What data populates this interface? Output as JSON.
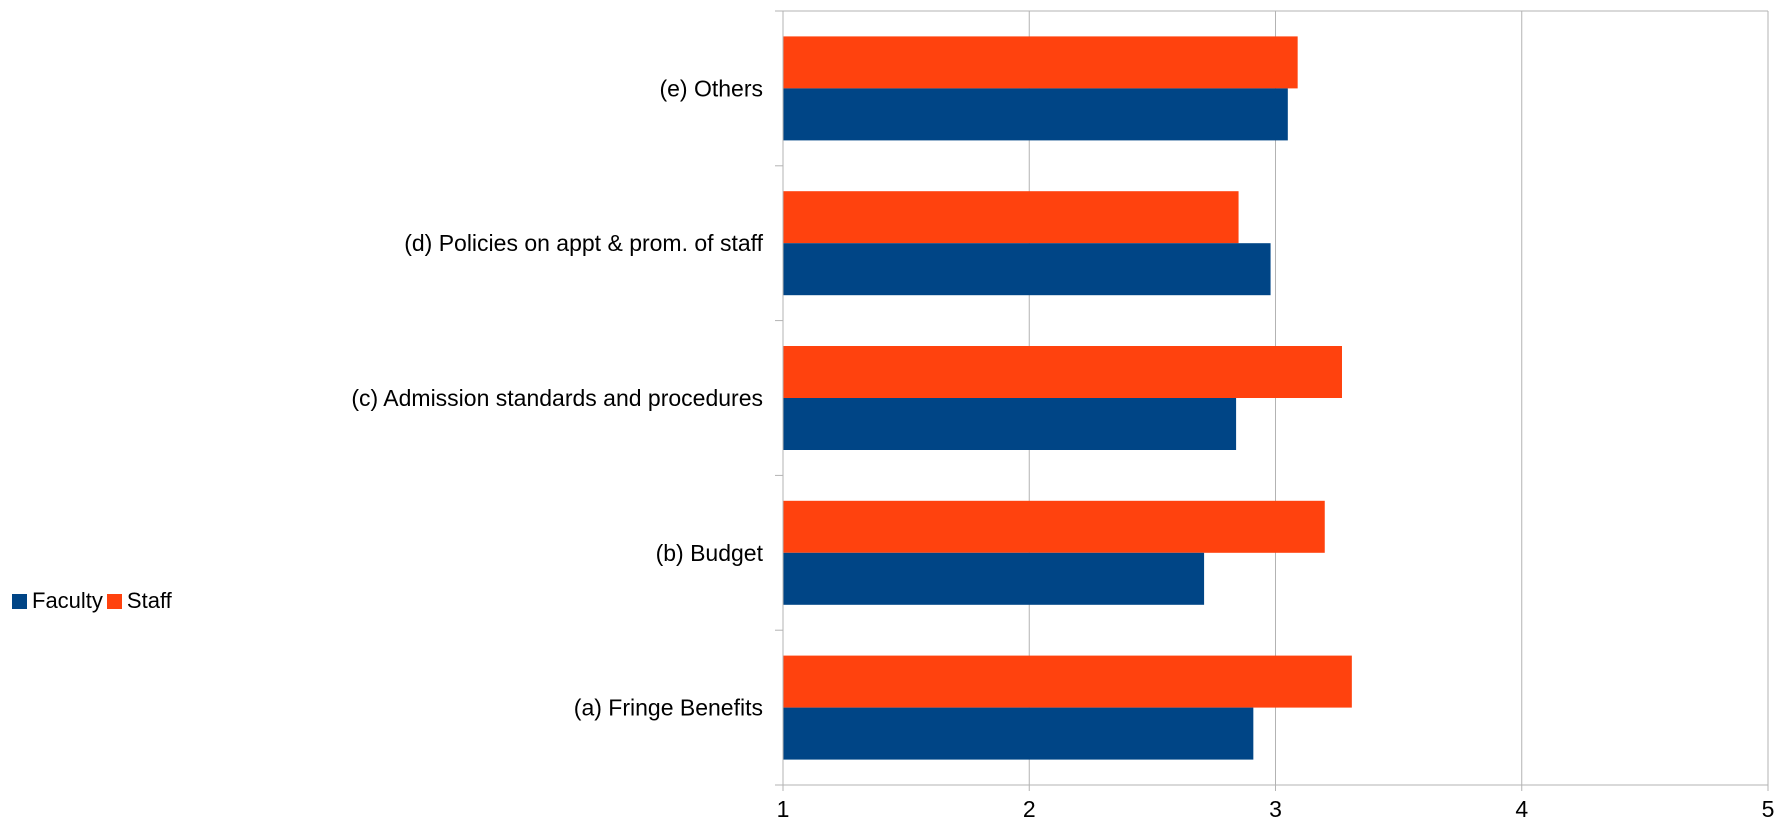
{
  "chart_data": {
    "type": "bar",
    "orientation": "horizontal",
    "categories": [
      "(a) Fringe Benefits",
      "(b) Budget",
      "(c) Admission standards and procedures",
      "(d) Policies on appt & prom. of staff",
      "(e) Others"
    ],
    "series": [
      {
        "name": "Faculty",
        "color": "#004586",
        "values": [
          2.91,
          2.71,
          2.84,
          2.98,
          3.05
        ]
      },
      {
        "name": "Staff",
        "color": "#ff420e",
        "values": [
          3.31,
          3.2,
          3.27,
          2.85,
          3.09
        ]
      }
    ],
    "xlim": [
      1,
      5
    ],
    "xticks": [
      "1",
      "2",
      "3",
      "4",
      "5"
    ],
    "grid": true,
    "legend_position": "left"
  }
}
